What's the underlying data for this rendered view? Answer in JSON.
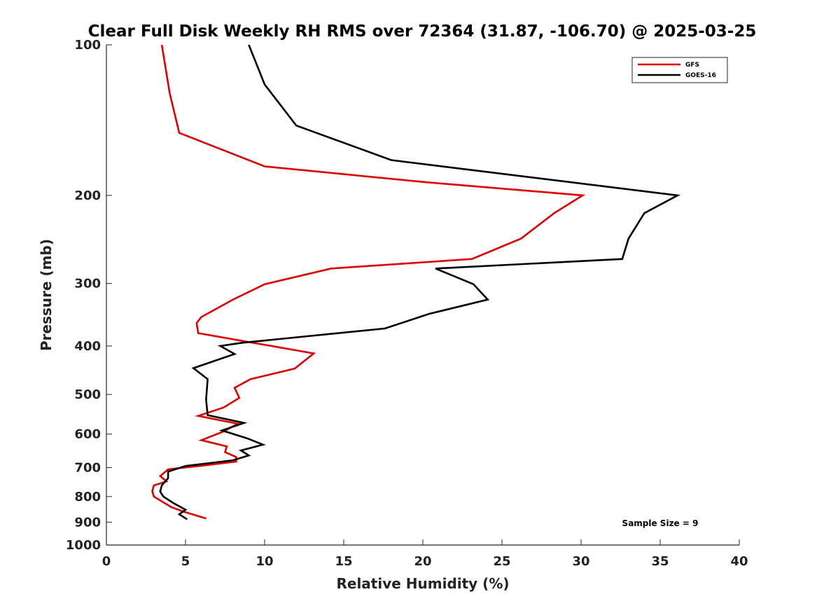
{
  "chart_data": {
    "type": "line",
    "title": "Clear Full Disk Weekly RH RMS over 72364 (31.87, -106.70) @ 2025-03-25",
    "xlabel": "Relative Humidity (%)",
    "ylabel": "Pressure (mb)",
    "xlim": [
      0,
      40
    ],
    "ylim": [
      100,
      1000
    ],
    "y_scale": "log",
    "y_reversed": true,
    "xticks": [
      0,
      5,
      10,
      15,
      20,
      25,
      30,
      35,
      40
    ],
    "yticks": [
      100,
      200,
      300,
      400,
      500,
      600,
      700,
      800,
      900,
      1000
    ],
    "grid": false,
    "legend_position": "top-right",
    "annotation": "Sample Size = 9",
    "series": [
      {
        "name": "GFS",
        "color": "#e00000",
        "points": [
          [
            3.5,
            100
          ],
          [
            4.0,
            125
          ],
          [
            4.6,
            150
          ],
          [
            10.0,
            175
          ],
          [
            20.0,
            188
          ],
          [
            30.1,
            200
          ],
          [
            28.3,
            217
          ],
          [
            26.2,
            244
          ],
          [
            23.1,
            268
          ],
          [
            14.2,
            280
          ],
          [
            10.0,
            301
          ],
          [
            8.0,
            323
          ],
          [
            6.0,
            350
          ],
          [
            5.7,
            360
          ],
          [
            5.8,
            377
          ],
          [
            13.1,
            414
          ],
          [
            11.9,
            444
          ],
          [
            9.1,
            466
          ],
          [
            8.1,
            485
          ],
          [
            8.4,
            508
          ],
          [
            7.4,
            531
          ],
          [
            5.8,
            552
          ],
          [
            8.3,
            572
          ],
          [
            7.4,
            593
          ],
          [
            6.0,
            617
          ],
          [
            7.6,
            635
          ],
          [
            7.5,
            652
          ],
          [
            8.2,
            667
          ],
          [
            8.2,
            681
          ],
          [
            6.2,
            693
          ],
          [
            3.9,
            706
          ],
          [
            3.4,
            728
          ],
          [
            3.8,
            746
          ],
          [
            3.0,
            760
          ],
          [
            2.9,
            780
          ],
          [
            3.0,
            800
          ],
          [
            4.1,
            840
          ],
          [
            4.9,
            858
          ],
          [
            6.3,
            885
          ]
        ]
      },
      {
        "name": "GOES-16",
        "color": "#000000",
        "points": [
          [
            9.0,
            100
          ],
          [
            10.0,
            120
          ],
          [
            12.0,
            145
          ],
          [
            18.0,
            170
          ],
          [
            36.1,
            200
          ],
          [
            34.0,
            217
          ],
          [
            33.0,
            244
          ],
          [
            32.6,
            268
          ],
          [
            20.8,
            280
          ],
          [
            23.2,
            301
          ],
          [
            24.1,
            323
          ],
          [
            20.4,
            345
          ],
          [
            17.6,
            369
          ],
          [
            8.6,
            394
          ],
          [
            7.2,
            400
          ],
          [
            8.1,
            415
          ],
          [
            5.5,
            443
          ],
          [
            6.4,
            466
          ],
          [
            6.3,
            512
          ],
          [
            6.4,
            550
          ],
          [
            8.7,
            570
          ],
          [
            7.3,
            590
          ],
          [
            8.9,
            612
          ],
          [
            9.9,
            630
          ],
          [
            8.5,
            647
          ],
          [
            9.0,
            662
          ],
          [
            8.0,
            677
          ],
          [
            5.0,
            695
          ],
          [
            3.9,
            713
          ],
          [
            3.9,
            735
          ],
          [
            3.5,
            760
          ],
          [
            3.4,
            782
          ],
          [
            3.6,
            800
          ],
          [
            4.2,
            823
          ],
          [
            5.0,
            850
          ],
          [
            4.6,
            868
          ],
          [
            5.1,
            888
          ]
        ]
      }
    ]
  }
}
